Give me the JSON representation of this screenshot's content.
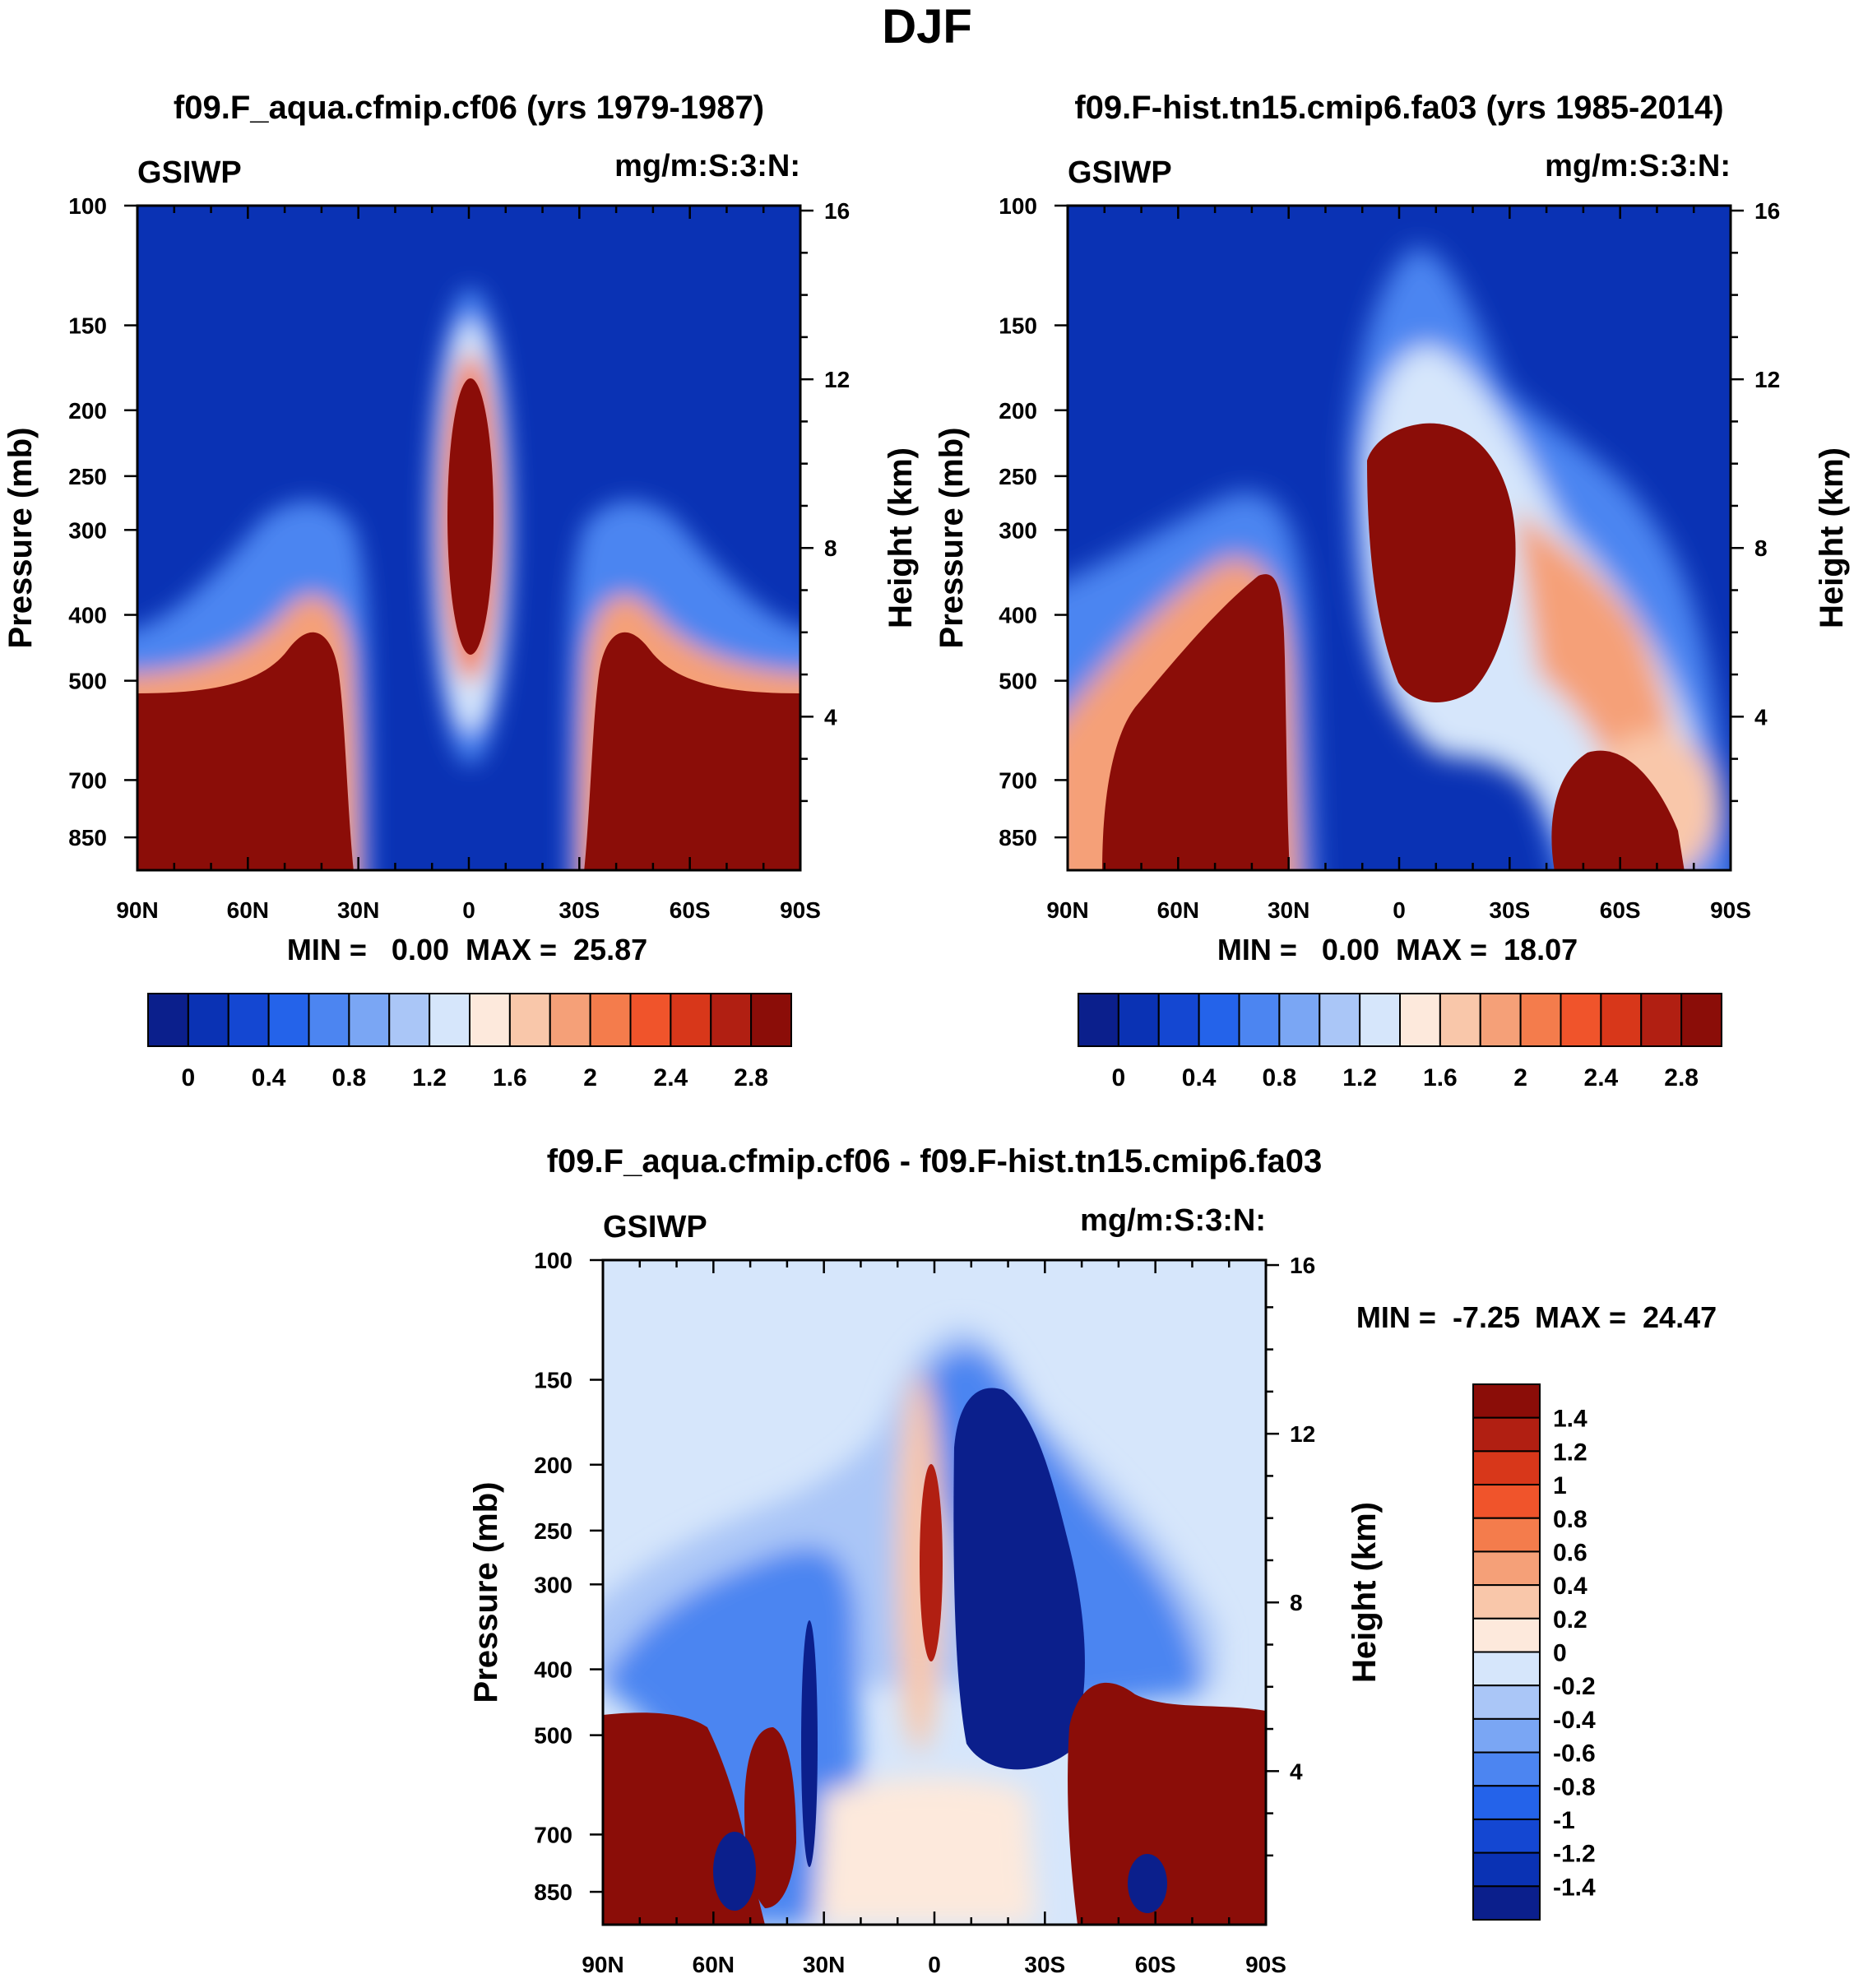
{
  "figure_title": "DJF",
  "chart_data": [
    {
      "type": "contour",
      "title": "f09.F_aqua.cfmip.cf06 (yrs 1979-1987)",
      "variable": "GSIWP",
      "units": "mg/m:S:3:N:",
      "xlabel": "",
      "ylabel": "Pressure (mb)",
      "y2label": "Height (km)",
      "x_ticks": [
        "90N",
        "60N",
        "30N",
        "0",
        "30S",
        "60S",
        "90S"
      ],
      "x_values": [
        90,
        60,
        30,
        0,
        -30,
        -60,
        -90
      ],
      "y_ticks": [
        100,
        150,
        200,
        250,
        300,
        400,
        500,
        700,
        850
      ],
      "y_range": [
        100,
        950
      ],
      "y2_ticks": [
        16,
        12,
        8,
        4
      ],
      "min_label": "MIN =   0.00",
      "max_label": "MAX =  25.87",
      "colorbar_labels": [
        "0",
        "0.4",
        "0.8",
        "1.2",
        "1.6",
        "2",
        "2.4",
        "2.8"
      ],
      "colorbar_levels": [
        -0.2,
        0,
        0.2,
        0.4,
        0.6,
        0.8,
        1.0,
        1.2,
        1.4,
        1.6,
        1.8,
        2.0,
        2.2,
        2.4,
        2.6,
        2.8,
        3.0
      ]
    },
    {
      "type": "contour",
      "title": "f09.F-hist.tn15.cmip6.fa03 (yrs 1985-2014)",
      "variable": "GSIWP",
      "units": "mg/m:S:3:N:",
      "xlabel": "",
      "ylabel": "Pressure (mb)",
      "y2label": "Height (km)",
      "x_ticks": [
        "90N",
        "60N",
        "30N",
        "0",
        "30S",
        "60S",
        "90S"
      ],
      "x_values": [
        90,
        60,
        30,
        0,
        -30,
        -60,
        -90
      ],
      "y_ticks": [
        100,
        150,
        200,
        250,
        300,
        400,
        500,
        700,
        850
      ],
      "y_range": [
        100,
        950
      ],
      "y2_ticks": [
        16,
        12,
        8,
        4
      ],
      "min_label": "MIN =   0.00",
      "max_label": "MAX =  18.07",
      "colorbar_labels": [
        "0",
        "0.4",
        "0.8",
        "1.2",
        "1.6",
        "2",
        "2.4",
        "2.8"
      ],
      "colorbar_levels": [
        -0.2,
        0,
        0.2,
        0.4,
        0.6,
        0.8,
        1.0,
        1.2,
        1.4,
        1.6,
        1.8,
        2.0,
        2.2,
        2.4,
        2.6,
        2.8,
        3.0
      ]
    },
    {
      "type": "contour",
      "title": "f09.F_aqua.cfmip.cf06 - f09.F-hist.tn15.cmip6.fa03",
      "variable": "GSIWP",
      "units": "mg/m:S:3:N:",
      "xlabel": "",
      "ylabel": "Pressure (mb)",
      "y2label": "Height (km)",
      "x_ticks": [
        "90N",
        "60N",
        "30N",
        "0",
        "30S",
        "60S",
        "90S"
      ],
      "x_values": [
        90,
        60,
        30,
        0,
        -30,
        -60,
        -90
      ],
      "y_ticks": [
        100,
        150,
        200,
        250,
        300,
        400,
        500,
        700,
        850
      ],
      "y_range": [
        100,
        950
      ],
      "y2_ticks": [
        16,
        12,
        8,
        4
      ],
      "min_label": "MIN =  -7.25",
      "max_label": "MAX =  24.47",
      "colorbar_labels": [
        "1.4",
        "1.2",
        "1",
        "0.8",
        "0.6",
        "0.4",
        "0.2",
        "0",
        "-0.2",
        "-0.4",
        "-0.6",
        "-0.8",
        "-1",
        "-1.2",
        "-1.4"
      ],
      "colorbar_levels": [
        -1.6,
        -1.4,
        -1.2,
        -1.0,
        -0.8,
        -0.6,
        -0.4,
        -0.2,
        0,
        0.2,
        0.4,
        0.6,
        0.8,
        1.0,
        1.2,
        1.4,
        1.6
      ]
    }
  ],
  "palette": [
    "#0b1f8c",
    "#0a32b4",
    "#1447d2",
    "#2463ea",
    "#4c85f1",
    "#7aa6f4",
    "#aac6f7",
    "#d6e6fb",
    "#fde9dc",
    "#f9c7aa",
    "#f5a078",
    "#f47c4c",
    "#f0542b",
    "#d8371a",
    "#b11f12",
    "#8b0d08"
  ]
}
